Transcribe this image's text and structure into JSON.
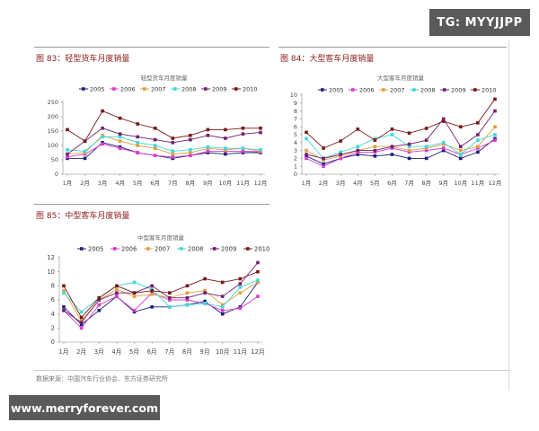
{
  "watermarks": {
    "tg": "TG: MYYJJPP",
    "site": "www.merryforever.com"
  },
  "source": "数据来源：中国汽车行业协会、东方证券研究所",
  "series_colors": {
    "2005": "#1f1f78",
    "2006": "#d83cd0",
    "2007": "#e0a040",
    "2008": "#40d8d8",
    "2009": "#702070",
    "2010": "#781818"
  },
  "chart_data": [
    {
      "type": "line",
      "figure_label": "图 83：轻型货车月度销量",
      "title": "轻型货车月度销量",
      "categories": [
        "1月",
        "2月",
        "3月",
        "4月",
        "5月",
        "6月",
        "7月",
        "8月",
        "9月",
        "10月",
        "11月",
        "12月"
      ],
      "yticks": [
        "0",
        "50",
        "100",
        "150",
        "200",
        "250"
      ],
      "ylim": [
        0,
        250
      ],
      "legend": "top",
      "series": [
        {
          "name": "2005",
          "values": [
            55,
            55,
            110,
            95,
            75,
            65,
            55,
            65,
            75,
            70,
            75,
            75
          ]
        },
        {
          "name": "2006",
          "values": [
            60,
            70,
            105,
            90,
            75,
            65,
            60,
            65,
            80,
            80,
            80,
            78
          ]
        },
        {
          "name": "2007",
          "values": [
            70,
            75,
            135,
            115,
            100,
            90,
            70,
            75,
            90,
            85,
            90,
            80
          ]
        },
        {
          "name": "2008",
          "values": [
            85,
            80,
            130,
            130,
            110,
            100,
            80,
            85,
            95,
            90,
            90,
            85
          ]
        },
        {
          "name": "2009",
          "values": [
            70,
            115,
            160,
            140,
            130,
            120,
            110,
            120,
            135,
            125,
            140,
            145
          ]
        },
        {
          "name": "2010",
          "values": [
            155,
            115,
            220,
            195,
            175,
            160,
            125,
            135,
            155,
            155,
            160,
            160
          ]
        }
      ]
    },
    {
      "type": "line",
      "figure_label": "图 84：大型客车月度销量",
      "title": "大型客车月度销量",
      "categories": [
        "1月",
        "2月",
        "3月",
        "4月",
        "5月",
        "6月",
        "7月",
        "8月",
        "9月",
        "10月",
        "11月",
        "12月"
      ],
      "yticks": [
        "0",
        "1",
        "2",
        "3",
        "4",
        "5",
        "6",
        "7",
        "8",
        "9",
        "10"
      ],
      "ylim": [
        0,
        10
      ],
      "legend": "top",
      "series": [
        {
          "name": "2005",
          "values": [
            2.3,
            1.3,
            2.0,
            2.5,
            2.3,
            2.5,
            2.0,
            2.0,
            3.0,
            2.0,
            2.8,
            4.5
          ]
        },
        {
          "name": "2006",
          "values": [
            2.0,
            1.0,
            2.0,
            2.8,
            2.8,
            3.3,
            2.8,
            3.0,
            3.3,
            2.5,
            3.3,
            4.3
          ]
        },
        {
          "name": "2007",
          "values": [
            3.0,
            1.8,
            2.3,
            3.0,
            3.5,
            3.5,
            3.0,
            3.3,
            3.8,
            3.0,
            3.5,
            6.0
          ]
        },
        {
          "name": "2008",
          "values": [
            4.5,
            2.0,
            2.8,
            3.5,
            4.5,
            5.0,
            3.5,
            3.5,
            4.0,
            2.5,
            4.3,
            5.0
          ]
        },
        {
          "name": "2009",
          "values": [
            2.5,
            2.0,
            2.5,
            3.0,
            3.0,
            3.5,
            3.8,
            4.3,
            7.0,
            3.5,
            5.0,
            8.0
          ]
        },
        {
          "name": "2010",
          "values": [
            5.3,
            3.3,
            4.2,
            5.7,
            4.3,
            5.7,
            5.2,
            5.8,
            6.7,
            6.0,
            6.5,
            9.5
          ]
        }
      ]
    },
    {
      "type": "line",
      "figure_label": "图 85：中型客车月度销量",
      "title": "中型客车月度销量",
      "categories": [
        "1月",
        "2月",
        "3月",
        "4月",
        "5月",
        "6月",
        "7月",
        "8月",
        "9月",
        "10月",
        "11月",
        "12月"
      ],
      "yticks": [
        "0",
        "2",
        "4",
        "6",
        "8",
        "10",
        "12"
      ],
      "ylim": [
        0,
        12
      ],
      "legend": "top",
      "series": [
        {
          "name": "2005",
          "values": [
            5.0,
            2.5,
            4.5,
            6.5,
            4.3,
            5.0,
            5.0,
            5.3,
            5.8,
            4.0,
            5.0,
            8.5
          ]
        },
        {
          "name": "2006",
          "values": [
            4.5,
            2.0,
            5.3,
            6.5,
            4.5,
            7.0,
            6.0,
            6.0,
            5.5,
            4.5,
            4.8,
            6.5
          ]
        },
        {
          "name": "2007",
          "values": [
            7.3,
            3.0,
            6.0,
            7.5,
            6.5,
            6.8,
            6.3,
            7.0,
            7.3,
            5.3,
            7.0,
            8.5
          ]
        },
        {
          "name": "2008",
          "values": [
            7.0,
            4.3,
            6.3,
            8.0,
            8.5,
            7.5,
            5.0,
            5.3,
            5.5,
            5.0,
            7.8,
            8.8
          ]
        },
        {
          "name": "2009",
          "values": [
            4.5,
            2.8,
            6.0,
            7.0,
            7.0,
            8.0,
            6.3,
            6.3,
            7.0,
            6.5,
            8.3,
            11.3
          ]
        },
        {
          "name": "2010",
          "values": [
            8.0,
            3.5,
            6.3,
            8.0,
            7.0,
            7.3,
            7.0,
            8.0,
            9.0,
            8.5,
            9.0,
            10.0
          ]
        }
      ]
    }
  ]
}
